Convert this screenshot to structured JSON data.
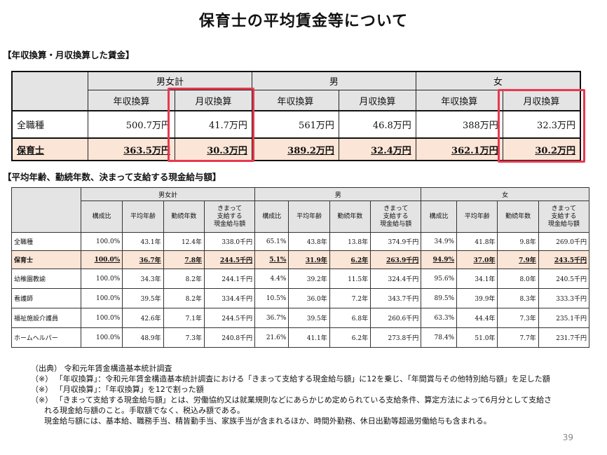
{
  "title": "保育士の平均賃金等について",
  "section1": {
    "label": "【年収換算・月収換算した賃金】",
    "groups": [
      "男女計",
      "男",
      "女"
    ],
    "subheaders": [
      "年収換算",
      "月収換算",
      "年収換算",
      "月収換算",
      "年収換算",
      "月収換算"
    ],
    "rows": [
      {
        "label": "全職種",
        "values": [
          "500.7万円",
          "41.7万円",
          "561万円",
          "46.8万円",
          "388万円",
          "32.3万円"
        ]
      },
      {
        "label": "保育士",
        "values": [
          "363.5万円",
          "30.3万円",
          "389.2万円",
          "32.4万円",
          "362.1万円",
          "30.2万円"
        ]
      }
    ]
  },
  "section2": {
    "label": "【平均年齢、勤続年数、決まって支給する現金給与額】",
    "groups": [
      "男女計",
      "男",
      "女"
    ],
    "subheaders": [
      "構成比",
      "平均年齢",
      "勤続年数",
      "きまって\n支給する\n現金給与額"
    ],
    "rows": [
      {
        "label": "全職種",
        "values": [
          "100.0%",
          "43.1年",
          "12.4年",
          "338.0千円",
          "65.1%",
          "43.8年",
          "13.8年",
          "374.9千円",
          "34.9%",
          "41.8年",
          "9.8年",
          "269.0千円"
        ]
      },
      {
        "label": "保育士",
        "values": [
          "100.0%",
          "36.7年",
          "7.8年",
          "244.5千円",
          "5.1%",
          "31.9年",
          "6.2年",
          "263.9千円",
          "94.9%",
          "37.0年",
          "7.9年",
          "243.5千円"
        ]
      },
      {
        "label": "幼稚園教諭",
        "values": [
          "100.0%",
          "34.3年",
          "8.2年",
          "244.1千円",
          "4.4%",
          "39.2年",
          "11.5年",
          "324.4千円",
          "95.6%",
          "34.1年",
          "8.0年",
          "240.5千円"
        ]
      },
      {
        "label": "看護師",
        "values": [
          "100.0%",
          "39.5年",
          "8.2年",
          "334.4千円",
          "10.5%",
          "36.0年",
          "7.2年",
          "343.7千円",
          "89.5%",
          "39.9年",
          "8.3年",
          "333.3千円"
        ]
      },
      {
        "label": "福祉施設介護員",
        "values": [
          "100.0%",
          "42.6年",
          "7.1年",
          "244.5千円",
          "36.7%",
          "39.5年",
          "6.8年",
          "260.6千円",
          "63.3%",
          "44.4年",
          "7.3年",
          "235.1千円"
        ]
      },
      {
        "label": "ホームヘルパー",
        "values": [
          "100.0%",
          "48.9年",
          "7.3年",
          "240.8千円",
          "21.6%",
          "41.1年",
          "6.2年",
          "273.8千円",
          "78.4%",
          "51.0年",
          "7.7年",
          "231.7千円"
        ]
      }
    ]
  },
  "notes": [
    "（出典） 令和元年賃金構造基本統計調査",
    "（※） 「年収換算」：令和元年賃金構造基本統計調査における「きまって支給する現金給与額」に12を乗じ、「年間賞与その他特別給与額」を足した額",
    "（※） 「月収換算」：「年収換算」を12で割った額",
    "（※） 「きまって支給する現金給与額」とは、労働協約又は就業規則などにあらかじめ定められている支給条件、算定方法によって6月分として支給さ",
    "れる現金給与額のこと。手取額でなく、税込み額である。",
    "現金給与額には、基本給、職務手当、精皆勤手当、家族手当が含まれるほか、時間外勤務、休日出勤等超過労働給与も含まれる。"
  ],
  "page_number": "39",
  "colors": {
    "highlight_row": "#fbe5d6",
    "header_bg": "#e4e4e4",
    "callout_border": "#e8384f"
  }
}
